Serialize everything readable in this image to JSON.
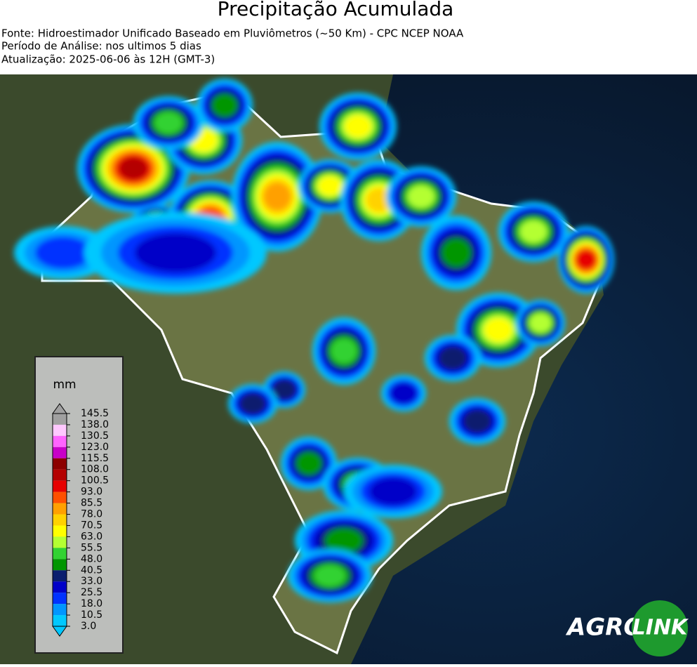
{
  "header": {
    "title": "Precipitação Acumulada",
    "lines": [
      "Fonte: Hidroestimador Unificado Baseado em Pluviômetros (~50 Km) - CPC NCEP NOAA",
      "Período de Análise: nos ultimos 5 dias",
      "Atualização: 2025-06-06 às 12H (GMT-3)"
    ]
  },
  "legend": {
    "unit": "mm",
    "ticks": [
      "145.5",
      "138.0",
      "130.5",
      "123.0",
      "115.5",
      "108.0",
      "100.5",
      "93.0",
      "85.5",
      "78.0",
      "70.5",
      "63.0",
      "55.5",
      "48.0",
      "40.5",
      "33.0",
      "25.5",
      "18.0",
      "10.5",
      "3.0"
    ]
  },
  "logo": {
    "left": "AGRO",
    "right": "LINK"
  }
}
